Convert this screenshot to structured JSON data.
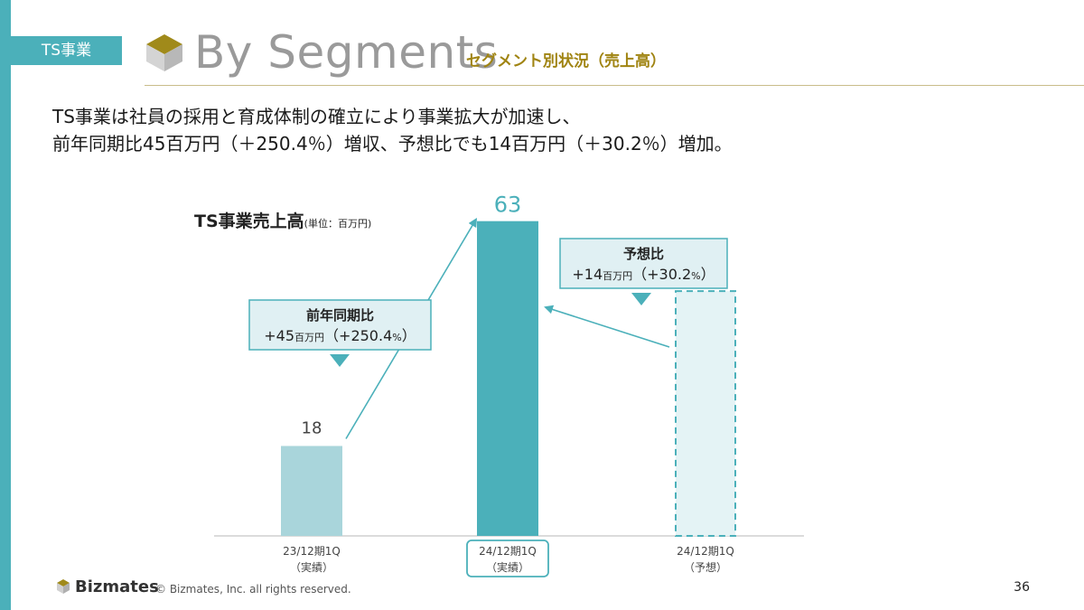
{
  "header": {
    "section_tag": "TS事業",
    "title": "By Segments",
    "subtitle": "セグメント別状況（売上高）"
  },
  "summary": {
    "line1": "TS事業は社員の採用と育成体制の確立により事業拡大が加速し、",
    "line2": "前年同期比45百万円（＋250.4％）増収、予想比でも14百万円（＋30.2％）増加。"
  },
  "colors": {
    "accent_teal": "#4bb0ba",
    "light_teal": "#a9d5db",
    "forecast_fill": "#e4f3f5",
    "callout_fill": "#e0f0f3",
    "gold_rule": "#c9bd8a",
    "subtitle_gold": "#a08412"
  },
  "chart_data": {
    "type": "bar",
    "title": "TS事業売上高",
    "unit": "(単位：百万円)",
    "categories": [
      "23/12期1Q\n（実績）",
      "24/12期1Q\n（実績）",
      "24/12期1Q\n（予想）"
    ],
    "values": [
      18,
      63,
      49
    ],
    "bar_styles": [
      "light",
      "solid",
      "dashed"
    ],
    "highlighted_category": 1,
    "ylim": [
      0,
      70
    ],
    "grid": false,
    "annotations": [
      {
        "title": "前年同期比",
        "big1": "+45",
        "small1": "百万円",
        "big2": "（+250.4",
        "small2": "%",
        "end": "）"
      },
      {
        "title": "予想比",
        "big1": "+14",
        "small1": "百万円",
        "big2": "（+30.2",
        "small2": "%",
        "end": "）"
      }
    ]
  },
  "footer": {
    "brand": "Bizmates",
    "copyright": "© Bizmates, Inc. all rights reserved.",
    "page": "36"
  }
}
